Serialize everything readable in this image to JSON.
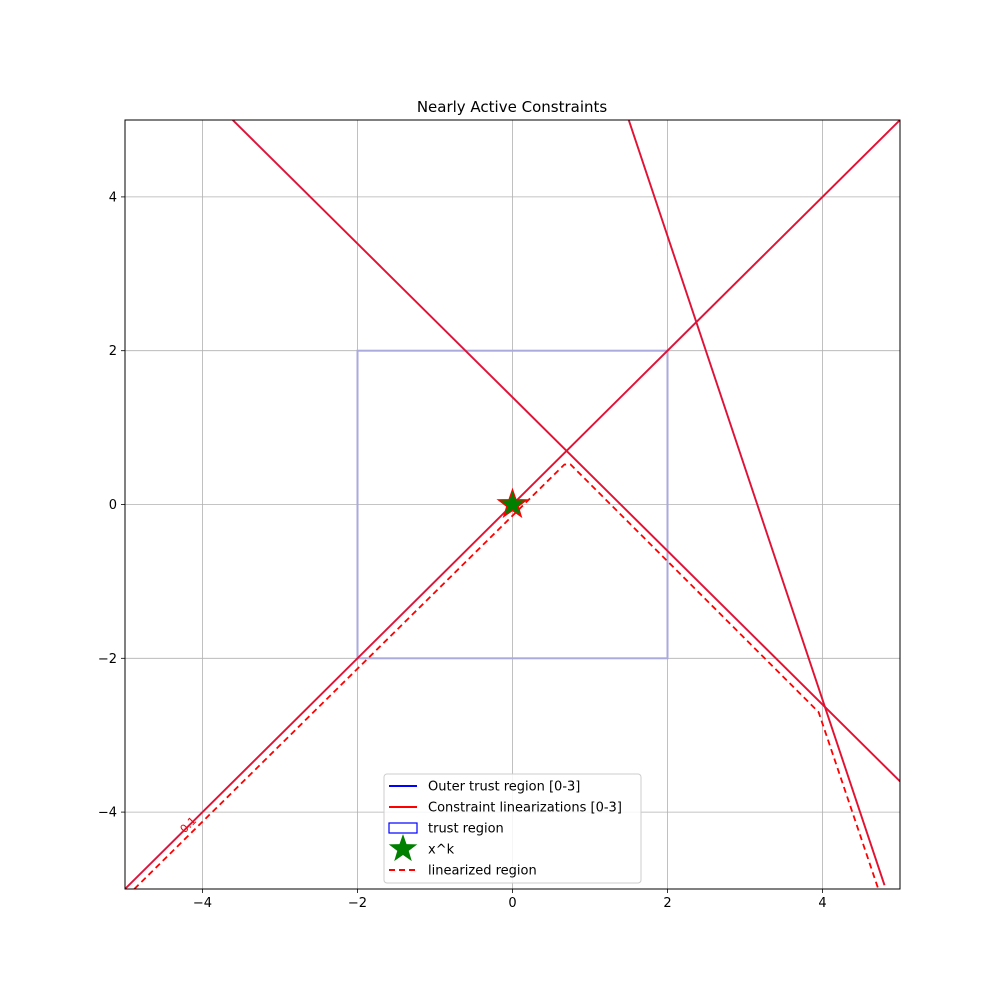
{
  "chart_data": {
    "type": "line",
    "title": "Nearly Active Constraints",
    "xlabel": "",
    "ylabel": "",
    "xlim": [
      -5,
      5
    ],
    "ylim": [
      -5,
      5
    ],
    "grid": true,
    "aspect": "equal",
    "xticks": [
      -4,
      -2,
      0,
      2,
      4
    ],
    "yticks": [
      -4,
      -2,
      0,
      2,
      4
    ],
    "xtick_labels": [
      "−4",
      "−2",
      "0",
      "2",
      "4"
    ],
    "ytick_labels": [
      "−4",
      "−2",
      "0",
      "2",
      "4"
    ],
    "legend": {
      "placement": "lower-center",
      "entries": [
        {
          "label": "Outer trust region [0-3]",
          "style": "line",
          "color": "#0000ff"
        },
        {
          "label": "Constraint linearizations [0-3]",
          "style": "line",
          "color": "#ff0000"
        },
        {
          "label": "trust region",
          "style": "box",
          "color": "#0000ff"
        },
        {
          "label": "x^k",
          "style": "star",
          "color": "#008000"
        },
        {
          "label": "linearized region",
          "style": "dashed",
          "color": "#ff0000"
        }
      ]
    },
    "trust_region": {
      "x": [
        -2,
        2
      ],
      "y": [
        -2,
        2
      ],
      "color": "#aaaadd"
    },
    "constraint_lines": [
      {
        "x": [
          -5,
          5
        ],
        "y": [
          -5,
          5
        ]
      },
      {
        "x": [
          -3.61,
          5
        ],
        "y": [
          5,
          -3.6
        ]
      },
      {
        "x": [
          1.5,
          4.8
        ],
        "y": [
          5,
          -4.95
        ]
      }
    ],
    "linearized_region": {
      "x": [
        -4.88,
        0.67,
        0.75,
        3.95,
        4.72
      ],
      "y": [
        -5,
        0.52,
        0.52,
        -2.7,
        -5
      ]
    },
    "contour_label": {
      "text": "0.1",
      "x": -4.15,
      "y": -4.2
    },
    "xk_point": {
      "x": 0,
      "y": 0,
      "color": "#008000"
    }
  }
}
